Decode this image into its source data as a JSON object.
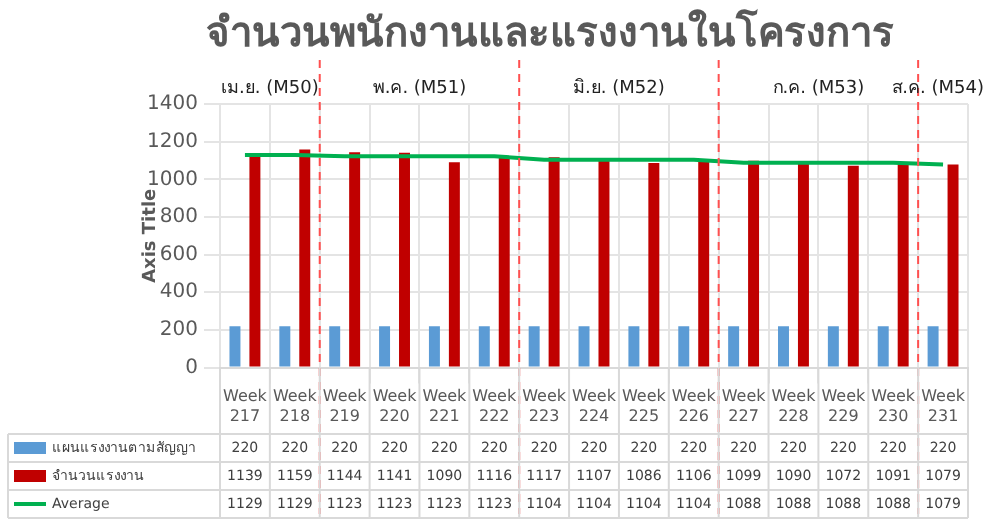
{
  "chart_data": {
    "type": "bar",
    "title": "จำนวนพนักงานและแรงงานในโครงการ",
    "ylabel": "Axis Title",
    "categories": [
      "Week 217",
      "Week 218",
      "Week 219",
      "Week 220",
      "Week 221",
      "Week 222",
      "Week 223",
      "Week 224",
      "Week 225",
      "Week 226",
      "Week 227",
      "Week 228",
      "Week 229",
      "Week 230",
      "Week 231"
    ],
    "series": [
      {
        "name": "แผนแรงงานตามสัญญา",
        "color": "#5b9bd5",
        "values": [
          220,
          220,
          220,
          220,
          220,
          220,
          220,
          220,
          220,
          220,
          220,
          220,
          220,
          220,
          220
        ]
      },
      {
        "name": "จำนวนแรงงาน",
        "color": "#c00000",
        "values": [
          1139,
          1159,
          1144,
          1141,
          1090,
          1116,
          1117,
          1107,
          1086,
          1106,
          1099,
          1090,
          1072,
          1091,
          1079
        ]
      },
      {
        "name": "Average",
        "type": "line",
        "color": "#00b050",
        "values": [
          1129,
          1129,
          1123,
          1123,
          1123,
          1123,
          1104,
          1104,
          1104,
          1104,
          1088,
          1088,
          1088,
          1088,
          1079
        ]
      }
    ],
    "ylim": [
      0,
      1400
    ],
    "yticks": [
      0,
      200,
      400,
      600,
      800,
      1000,
      1200,
      1400
    ],
    "grid": true,
    "legend": "bottom",
    "data_labels": true,
    "marker": "none",
    "annotations": [
      "เม.ย. (M50)",
      "พ.ค. (M51)",
      "มิ.ย. (M52)",
      "ก.ค. (M53)",
      "ส.ค. (M54)"
    ]
  }
}
